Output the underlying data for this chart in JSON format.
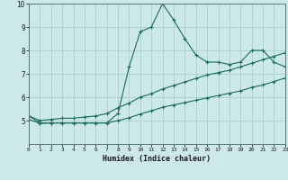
{
  "xlabel": "Humidex (Indice chaleur)",
  "bg_color": "#cce8e8",
  "grid_color": "#aacece",
  "line_color": "#1a6b5a",
  "xlim": [
    0,
    23
  ],
  "ylim": [
    4,
    10
  ],
  "xticks": [
    0,
    1,
    2,
    3,
    4,
    5,
    6,
    7,
    8,
    9,
    10,
    11,
    12,
    13,
    14,
    15,
    16,
    17,
    18,
    19,
    20,
    21,
    22,
    23
  ],
  "yticks": [
    5,
    6,
    7,
    8,
    9,
    10
  ],
  "series1_x": [
    0,
    1,
    2,
    3,
    4,
    5,
    6,
    7,
    8,
    9,
    10,
    11,
    12,
    13,
    14,
    15,
    16,
    17,
    18,
    19,
    20,
    21,
    22,
    23
  ],
  "series1_y": [
    5.2,
    4.9,
    4.9,
    4.9,
    4.9,
    4.9,
    4.9,
    4.9,
    5.3,
    7.3,
    8.8,
    9.0,
    10.0,
    9.3,
    8.5,
    7.8,
    7.5,
    7.5,
    7.4,
    7.5,
    8.0,
    8.0,
    7.5,
    7.3
  ],
  "series2_x": [
    0,
    1,
    2,
    3,
    4,
    5,
    6,
    7,
    8,
    9,
    10,
    11,
    12,
    13,
    14,
    15,
    16,
    17,
    18,
    19,
    20,
    21,
    22,
    23
  ],
  "series2_y": [
    5.2,
    5.0,
    5.05,
    5.1,
    5.1,
    5.15,
    5.2,
    5.3,
    5.55,
    5.75,
    6.0,
    6.15,
    6.35,
    6.5,
    6.65,
    6.8,
    6.95,
    7.05,
    7.15,
    7.3,
    7.45,
    7.6,
    7.75,
    7.9
  ],
  "series3_x": [
    0,
    1,
    2,
    3,
    4,
    5,
    6,
    7,
    8,
    9,
    10,
    11,
    12,
    13,
    14,
    15,
    16,
    17,
    18,
    19,
    20,
    21,
    22,
    23
  ],
  "series3_y": [
    5.05,
    4.88,
    4.9,
    4.9,
    4.9,
    4.9,
    4.9,
    4.9,
    5.0,
    5.12,
    5.28,
    5.42,
    5.57,
    5.67,
    5.77,
    5.87,
    5.97,
    6.07,
    6.17,
    6.27,
    6.42,
    6.52,
    6.67,
    6.82
  ]
}
